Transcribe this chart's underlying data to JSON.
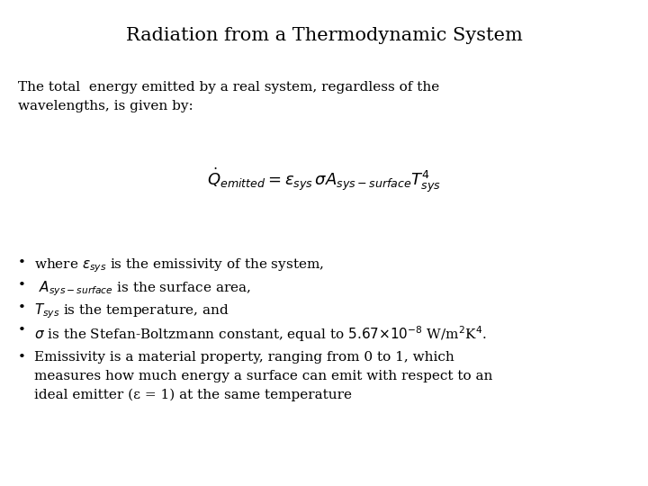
{
  "title": "Radiation from a Thermodynamic System",
  "intro_text": "The total  energy emitted by a real system, regardless of the\nwavelengths, is given by:",
  "equation": "$\\dot{Q}_{emitted} = \\varepsilon_{sys}\\, \\sigma A_{sys-surface} T_{sys}^4$",
  "bullet1_pre": "where ",
  "bullet1_var": "$\\varepsilon_{sys}$",
  "bullet1_post": " is the emissivity of the system,",
  "bullet2_pre": " ",
  "bullet2_var": "$A_{sys-surface}$",
  "bullet2_post": " is the surface area,",
  "bullet3_pre": "",
  "bullet3_var": "$T_{sys}$",
  "bullet3_post": " is the temperature, and",
  "bullet4": "σ is the Stefan-Boltzmann constant, equal to 5.67×10-8 W/m2K4.",
  "bullet5": "Emissivity is a material property, ranging from 0 to 1, which\nmeasures how much energy a surface can emit with respect to an\nideal emitter (ε = 1) at the same temperature",
  "bg_color": "#ffffff",
  "text_color": "#000000",
  "title_fontsize": 15,
  "body_fontsize": 11,
  "eq_fontsize": 13
}
